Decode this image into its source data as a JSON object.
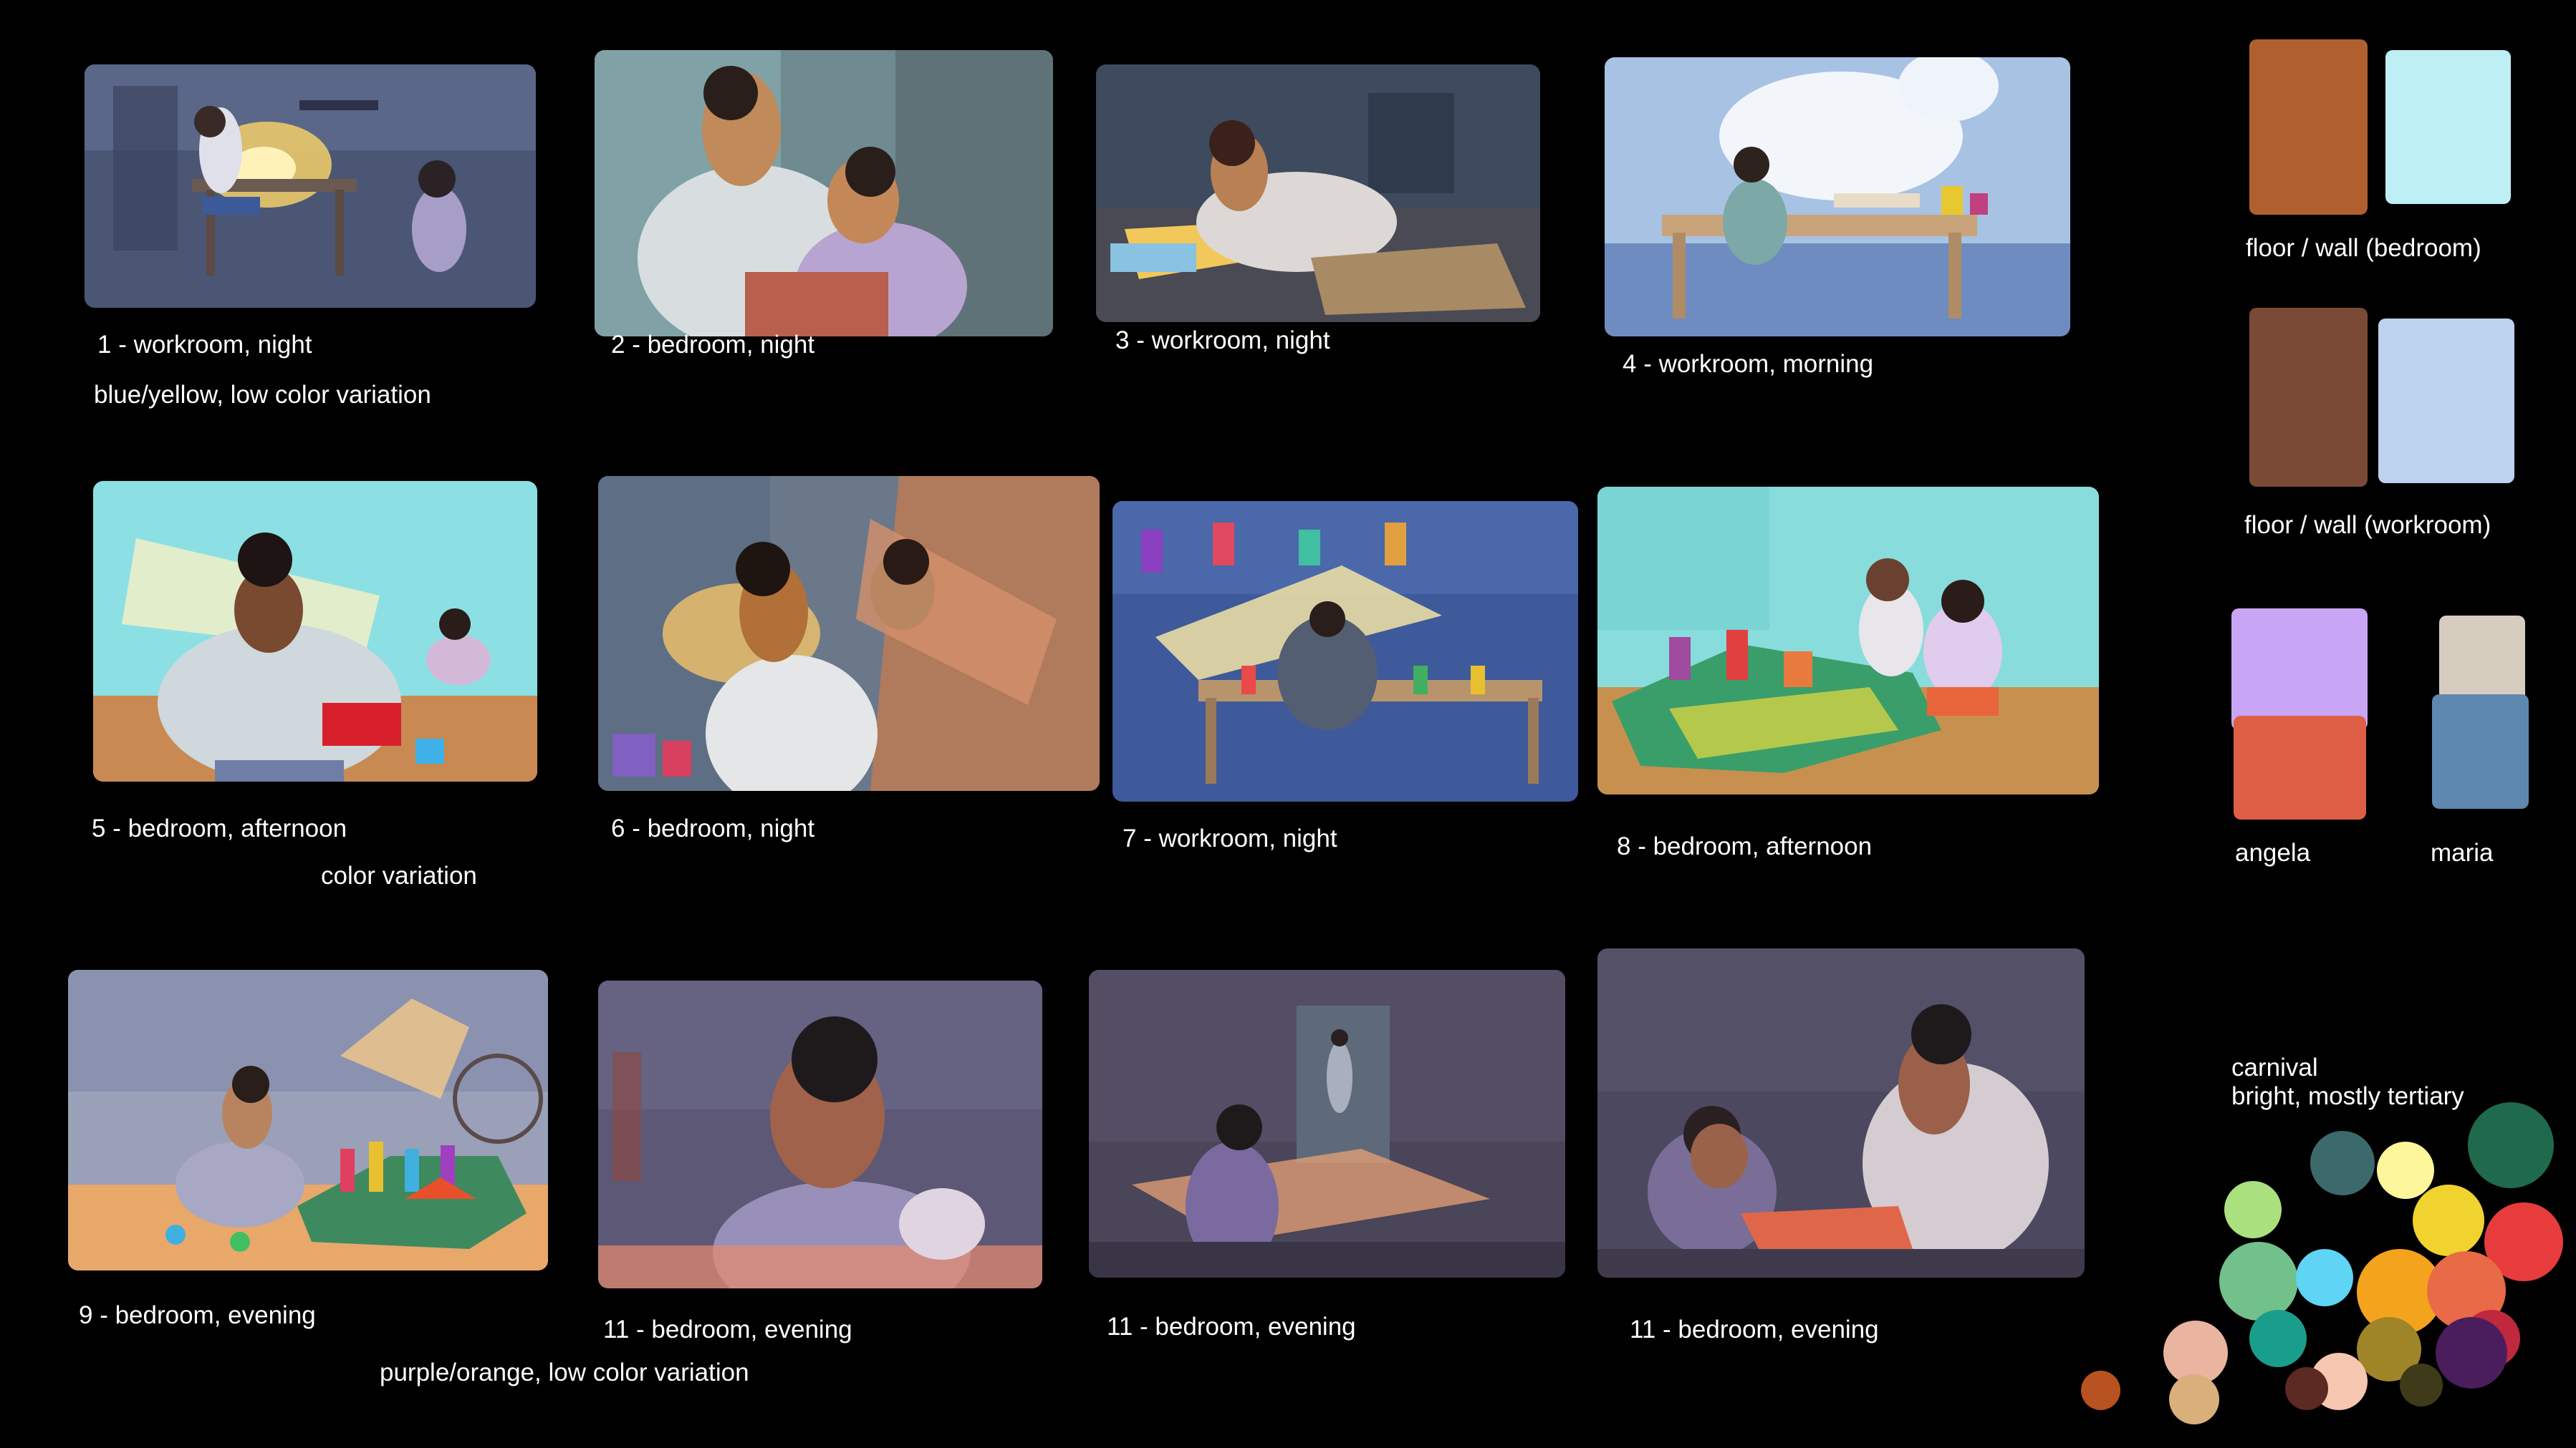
{
  "thumbnails": [
    {
      "caption": "1 - workroom, night"
    },
    {
      "caption": "2 - bedroom, night"
    },
    {
      "caption": "3 - workroom, night"
    },
    {
      "caption": "4 - workroom, morning"
    },
    {
      "caption": "5 - bedroom, afternoon"
    },
    {
      "caption": "6 - bedroom, night"
    },
    {
      "caption": "7 - workroom, night"
    },
    {
      "caption": "8 - bedroom, afternoon"
    },
    {
      "caption": "9 - bedroom, evening"
    },
    {
      "caption": "11 - bedroom, evening"
    },
    {
      "caption": "11 - bedroom, evening"
    },
    {
      "caption": "11 - bedroom, evening"
    }
  ],
  "notes": {
    "row1": "blue/yellow, low color variation",
    "row2": "color variation",
    "row3": "purple/orange, low color variation"
  },
  "palettes": {
    "bedroom": {
      "label": "floor / wall (bedroom)",
      "colors": [
        "#b0602e",
        "#bdeff4"
      ]
    },
    "workroom": {
      "label": "floor / wall (workroom)",
      "colors": [
        "#7a4a36",
        "#bcd2ee"
      ]
    },
    "angela": {
      "label": "angela",
      "colors": [
        "#c9a5f5",
        "#de5f45"
      ]
    },
    "maria": {
      "label": "maria",
      "colors": [
        "#d7cdbf",
        "#5e88b0"
      ]
    },
    "carnival": {
      "label": "carnival",
      "sublabel": "bright, mostly tertiary",
      "colors": [
        "#3c6a6c",
        "#fef69a",
        "#1f6a4d",
        "#abe07f",
        "#f0d32e",
        "#e83c3c",
        "#72c08a",
        "#5fd4f4",
        "#f4a41c",
        "#e86a46",
        "#c0283e",
        "#e9b4a0",
        "#1a9e8c",
        "#a08428",
        "#4a1e5c",
        "#d9b07c",
        "#f6c7b0",
        "#5c2a22",
        "#3e3a1a",
        "#b85220"
      ]
    }
  }
}
